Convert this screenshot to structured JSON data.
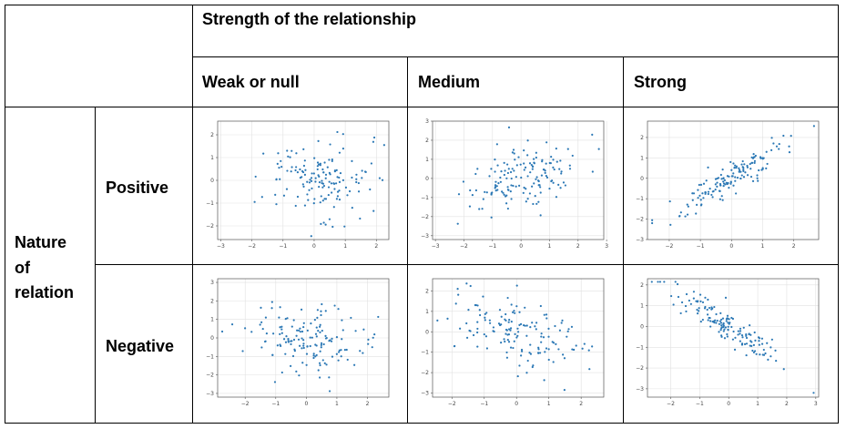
{
  "table": {
    "header_title": "Strength of the relationship",
    "columns": [
      "Weak or null",
      "Medium",
      "Strong"
    ],
    "row_group_label": [
      "Nature",
      "of",
      "relation"
    ],
    "rows": [
      "Positive",
      "Negative"
    ]
  },
  "chart_data": [
    {
      "type": "scatter",
      "row": "Positive",
      "column": "Weak or null",
      "xlim": [
        -3.1,
        2.4
      ],
      "ylim": [
        -2.6,
        2.6
      ],
      "xticks": [
        -3,
        -2,
        -1,
        0,
        1,
        2
      ],
      "yticks": [
        -2,
        -1,
        0,
        1,
        2
      ],
      "grid": true,
      "n_points": 150,
      "correlation": 0.1
    },
    {
      "type": "scatter",
      "row": "Positive",
      "column": "Medium",
      "xlim": [
        -3.1,
        2.9
      ],
      "ylim": [
        -3.2,
        3.0
      ],
      "xticks": [
        -3,
        -2,
        -1,
        0,
        1,
        2,
        3
      ],
      "yticks": [
        -3,
        -2,
        -1,
        0,
        1,
        2,
        3
      ],
      "grid": true,
      "n_points": 150,
      "correlation": 0.5
    },
    {
      "type": "scatter",
      "row": "Positive",
      "column": "Strong",
      "xlim": [
        -2.7,
        2.8
      ],
      "ylim": [
        -3.0,
        2.8
      ],
      "xticks": [
        -2,
        -1,
        0,
        1,
        2
      ],
      "yticks": [
        -3,
        -2,
        -1,
        0,
        1,
        2
      ],
      "grid": true,
      "n_points": 150,
      "correlation": 0.9
    },
    {
      "type": "scatter",
      "row": "Negative",
      "column": "Weak or null",
      "xlim": [
        -2.9,
        2.7
      ],
      "ylim": [
        -3.2,
        3.2
      ],
      "xticks": [
        -2,
        -1,
        0,
        1,
        2
      ],
      "yticks": [
        -3,
        -2,
        -1,
        0,
        1,
        2,
        3
      ],
      "grid": true,
      "n_points": 150,
      "correlation": -0.1
    },
    {
      "type": "scatter",
      "row": "Negative",
      "column": "Medium",
      "xlim": [
        -2.6,
        2.7
      ],
      "ylim": [
        -3.2,
        2.6
      ],
      "xticks": [
        -2,
        -1,
        0,
        1,
        2
      ],
      "yticks": [
        -3,
        -2,
        -1,
        0,
        1,
        2
      ],
      "grid": true,
      "n_points": 150,
      "correlation": -0.5
    },
    {
      "type": "scatter",
      "row": "Negative",
      "column": "Strong",
      "xlim": [
        -2.8,
        3.1
      ],
      "ylim": [
        -3.4,
        2.3
      ],
      "xticks": [
        -2,
        -1,
        0,
        1,
        2,
        3
      ],
      "yticks": [
        -3,
        -2,
        -1,
        0,
        1,
        2
      ],
      "grid": true,
      "n_points": 150,
      "correlation": -0.9
    }
  ]
}
